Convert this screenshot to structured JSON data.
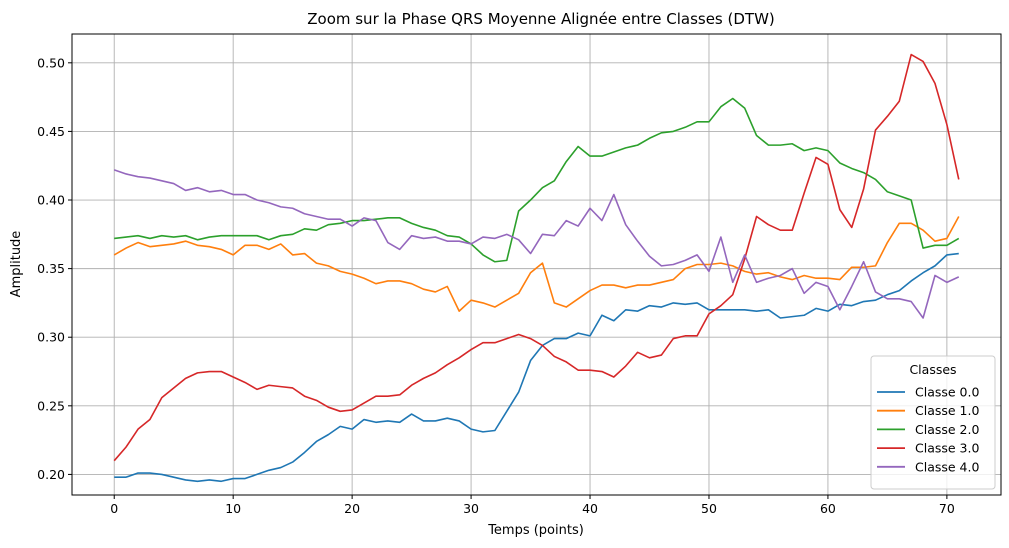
{
  "chart_data": {
    "type": "line",
    "title": "Zoom sur la Phase QRS Moyenne Alignée entre Classes (DTW)",
    "xlabel": "Temps (points)",
    "ylabel": "Amplitude",
    "xlim": [
      -3.55,
      74.55
    ],
    "ylim": [
      0.185,
      0.521
    ],
    "xticks": [
      0,
      10,
      20,
      30,
      40,
      50,
      60,
      70
    ],
    "yticks": [
      0.2,
      0.25,
      0.3,
      0.35,
      0.4,
      0.45,
      0.5
    ],
    "ytick_labels": [
      "0.20",
      "0.25",
      "0.30",
      "0.35",
      "0.40",
      "0.45",
      "0.50"
    ],
    "grid": true,
    "legend": {
      "title": "Classes",
      "position": "lower right"
    },
    "series": [
      {
        "name": "Classe 0.0",
        "color": "#1f77b4",
        "values": [
          0.198,
          0.198,
          0.201,
          0.201,
          0.2,
          0.198,
          0.196,
          0.195,
          0.196,
          0.195,
          0.197,
          0.197,
          0.2,
          0.203,
          0.205,
          0.209,
          0.216,
          0.224,
          0.229,
          0.235,
          0.233,
          0.24,
          0.238,
          0.239,
          0.238,
          0.244,
          0.239,
          0.239,
          0.241,
          0.239,
          0.233,
          0.231,
          0.232,
          0.246,
          0.26,
          0.283,
          0.294,
          0.299,
          0.299,
          0.303,
          0.301,
          0.316,
          0.312,
          0.32,
          0.319,
          0.323,
          0.322,
          0.325,
          0.324,
          0.325,
          0.32,
          0.32,
          0.32,
          0.32,
          0.319,
          0.32,
          0.314,
          0.315,
          0.316,
          0.321,
          0.319,
          0.324,
          0.323,
          0.326,
          0.327,
          0.331,
          0.334,
          0.341,
          0.347,
          0.352,
          0.36,
          0.361
        ]
      },
      {
        "name": "Classe 1.0",
        "color": "#ff7f0e",
        "values": [
          0.36,
          0.365,
          0.369,
          0.366,
          0.367,
          0.368,
          0.37,
          0.367,
          0.366,
          0.364,
          0.36,
          0.367,
          0.367,
          0.364,
          0.368,
          0.36,
          0.361,
          0.354,
          0.352,
          0.348,
          0.346,
          0.343,
          0.339,
          0.341,
          0.341,
          0.339,
          0.335,
          0.333,
          0.337,
          0.319,
          0.327,
          0.325,
          0.322,
          0.327,
          0.332,
          0.347,
          0.354,
          0.325,
          0.322,
          0.328,
          0.334,
          0.338,
          0.338,
          0.336,
          0.338,
          0.338,
          0.34,
          0.342,
          0.35,
          0.353,
          0.353,
          0.354,
          0.352,
          0.348,
          0.346,
          0.347,
          0.344,
          0.342,
          0.345,
          0.343,
          0.343,
          0.342,
          0.351,
          0.351,
          0.352,
          0.369,
          0.383,
          0.383,
          0.378,
          0.37,
          0.372,
          0.388
        ]
      },
      {
        "name": "Classe 2.0",
        "color": "#2ca02c",
        "values": [
          0.372,
          0.373,
          0.374,
          0.372,
          0.374,
          0.373,
          0.374,
          0.371,
          0.373,
          0.374,
          0.374,
          0.374,
          0.374,
          0.371,
          0.374,
          0.375,
          0.379,
          0.378,
          0.382,
          0.383,
          0.385,
          0.385,
          0.386,
          0.387,
          0.387,
          0.383,
          0.38,
          0.378,
          0.374,
          0.373,
          0.368,
          0.36,
          0.355,
          0.356,
          0.392,
          0.4,
          0.409,
          0.414,
          0.428,
          0.439,
          0.432,
          0.432,
          0.435,
          0.438,
          0.44,
          0.445,
          0.449,
          0.45,
          0.453,
          0.457,
          0.457,
          0.468,
          0.474,
          0.467,
          0.447,
          0.44,
          0.44,
          0.441,
          0.436,
          0.438,
          0.436,
          0.427,
          0.423,
          0.42,
          0.415,
          0.406,
          0.403,
          0.4,
          0.365,
          0.367,
          0.367,
          0.372
        ]
      },
      {
        "name": "Classe 3.0",
        "color": "#d62728",
        "values": [
          0.21,
          0.22,
          0.233,
          0.24,
          0.256,
          0.263,
          0.27,
          0.274,
          0.275,
          0.275,
          0.271,
          0.267,
          0.262,
          0.265,
          0.264,
          0.263,
          0.257,
          0.254,
          0.249,
          0.246,
          0.247,
          0.252,
          0.257,
          0.257,
          0.258,
          0.265,
          0.27,
          0.274,
          0.28,
          0.285,
          0.291,
          0.296,
          0.296,
          0.299,
          0.302,
          0.299,
          0.294,
          0.286,
          0.282,
          0.276,
          0.276,
          0.275,
          0.271,
          0.279,
          0.289,
          0.285,
          0.287,
          0.299,
          0.301,
          0.301,
          0.317,
          0.323,
          0.331,
          0.357,
          0.388,
          0.382,
          0.378,
          0.378,
          0.405,
          0.431,
          0.426,
          0.393,
          0.38,
          0.408,
          0.451,
          0.461,
          0.472,
          0.506,
          0.501,
          0.485,
          0.455,
          0.415
        ]
      },
      {
        "name": "Classe 4.0",
        "color": "#9467bd",
        "values": [
          0.422,
          0.419,
          0.417,
          0.416,
          0.414,
          0.412,
          0.407,
          0.409,
          0.406,
          0.407,
          0.404,
          0.404,
          0.4,
          0.398,
          0.395,
          0.394,
          0.39,
          0.388,
          0.386,
          0.386,
          0.381,
          0.387,
          0.385,
          0.369,
          0.364,
          0.374,
          0.372,
          0.373,
          0.37,
          0.37,
          0.368,
          0.373,
          0.372,
          0.375,
          0.371,
          0.361,
          0.375,
          0.374,
          0.385,
          0.381,
          0.394,
          0.385,
          0.404,
          0.382,
          0.37,
          0.359,
          0.352,
          0.353,
          0.356,
          0.36,
          0.348,
          0.373,
          0.34,
          0.36,
          0.34,
          0.343,
          0.345,
          0.35,
          0.332,
          0.34,
          0.337,
          0.32,
          0.337,
          0.355,
          0.333,
          0.328,
          0.328,
          0.326,
          0.314,
          0.345,
          0.34,
          0.344
        ]
      }
    ]
  }
}
